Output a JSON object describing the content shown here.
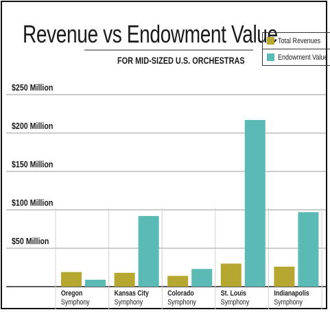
{
  "chart_data": {
    "type": "bar",
    "title": "Revenue vs Endowment Value",
    "subtitle": "FOR MID-SIZED U.S. ORCHESTRAS",
    "categories": [
      {
        "line1": "Oregon",
        "line2": "Symphony"
      },
      {
        "line1": "Kansas City",
        "line2": "Symphony"
      },
      {
        "line1": "Colorado",
        "line2": "Symphony"
      },
      {
        "line1": "St. Louis",
        "line2": "Symphony"
      },
      {
        "line1": "Indianapolis",
        "line2": "Symphony"
      }
    ],
    "series": [
      {
        "name": "Total Revenues",
        "color": "#b5a72f",
        "values": [
          19,
          18,
          14,
          30,
          26
        ]
      },
      {
        "name": "Endowment Value",
        "color": "#5bbab4",
        "values": [
          9,
          92,
          23,
          217,
          97
        ]
      }
    ],
    "yticks": [
      {
        "value": 50,
        "label": "$50 Million"
      },
      {
        "value": 100,
        "label": "$100 Million"
      },
      {
        "value": 150,
        "label": "$150 Million"
      },
      {
        "value": 200,
        "label": "$200 Million"
      },
      {
        "value": 250,
        "label": "$250 Million"
      }
    ],
    "ylim": [
      0,
      250
    ],
    "grid": true,
    "legend_position": "top-right"
  }
}
